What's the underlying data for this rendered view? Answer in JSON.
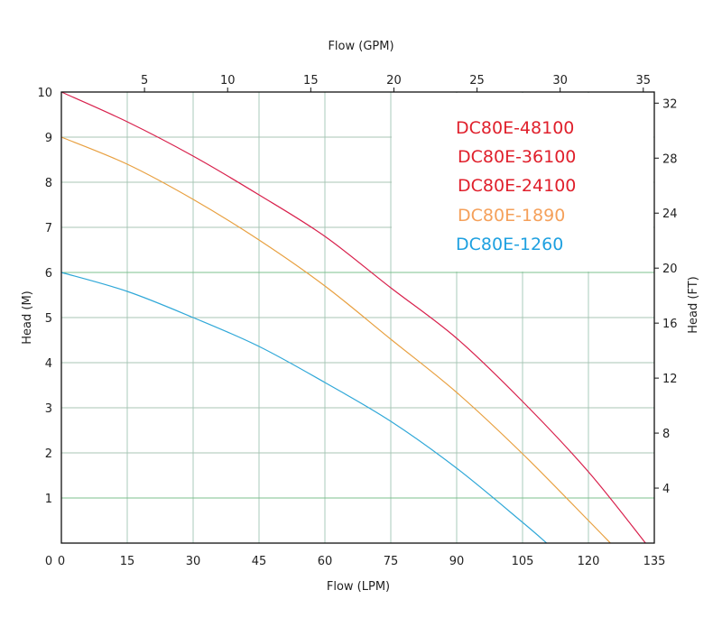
{
  "chart_data": {
    "type": "line",
    "xlabel": "Flow (LPM)",
    "x2label": "Flow (GPM)",
    "ylabel": "Head (M)",
    "y2label": "Head (FT)",
    "xlim": [
      0,
      135
    ],
    "ylim": [
      0,
      10
    ],
    "x2lim": [
      0,
      35.66
    ],
    "y2lim": [
      0,
      32.81
    ],
    "xticks": [
      0,
      15,
      30,
      45,
      60,
      75,
      90,
      105,
      120,
      135
    ],
    "yticks": [
      1,
      2,
      3,
      4,
      5,
      6,
      7,
      8,
      9,
      10
    ],
    "x2ticks": [
      5,
      10,
      15,
      20,
      25,
      30,
      35
    ],
    "y2ticks": [
      4,
      8,
      12,
      16,
      20,
      24,
      28,
      32
    ],
    "y_zero_label": "0",
    "grid": true,
    "legend_position": "top-right",
    "legend": [
      {
        "label": "DC80E-48100",
        "color": "#e0202c"
      },
      {
        "label": "DC80E-36100",
        "color": "#e0202c"
      },
      {
        "label": "DC80E-24100",
        "color": "#e0202c"
      },
      {
        "label": "DC80E-1890",
        "color": "#f5a05a"
      },
      {
        "label": "DC80E-1260",
        "color": "#1ea0e0"
      }
    ],
    "series": [
      {
        "color": "#d8204c",
        "x": [
          0,
          15,
          30,
          45,
          60,
          75,
          90,
          105,
          120,
          133
        ],
        "y": [
          10,
          9.34,
          8.58,
          7.72,
          6.8,
          5.66,
          4.54,
          3.14,
          1.58,
          0
        ]
      },
      {
        "color": "#e8a040",
        "x": [
          0,
          15,
          30,
          45,
          60,
          75,
          90,
          105,
          120,
          125
        ],
        "y": [
          9,
          8.4,
          7.62,
          6.72,
          5.7,
          4.52,
          3.34,
          1.98,
          0.5,
          0
        ]
      },
      {
        "color": "#30a8d8",
        "x": [
          0,
          15,
          30,
          45,
          60,
          75,
          90,
          105,
          110.5
        ],
        "y": [
          6,
          5.58,
          5.0,
          4.36,
          3.56,
          2.7,
          1.66,
          0.46,
          0
        ]
      }
    ]
  }
}
